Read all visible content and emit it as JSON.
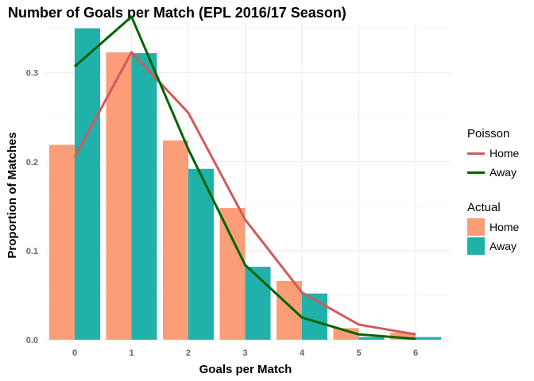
{
  "chart_data": {
    "type": "bar",
    "title": "Number of Goals per Match (EPL 2016/17 Season)",
    "xlabel": "Goals per Match",
    "ylabel": "Proportion of Matches",
    "categories": [
      "0",
      "1",
      "2",
      "3",
      "4",
      "5",
      "6"
    ],
    "ylim": [
      0,
      0.355
    ],
    "yticks": [
      0.0,
      0.1,
      0.2,
      0.3
    ],
    "ytick_labels": [
      "0.0",
      "0.1",
      "0.2",
      "0.3"
    ],
    "grid": true,
    "series": [
      {
        "name": "Home",
        "group": "Actual",
        "kind": "bar",
        "color": "#FC9D7A",
        "values": [
          0.219,
          0.323,
          0.224,
          0.148,
          0.066,
          0.013,
          0.008
        ]
      },
      {
        "name": "Away",
        "group": "Actual",
        "kind": "bar",
        "color": "#20B2AA",
        "values": [
          0.35,
          0.322,
          0.192,
          0.082,
          0.052,
          0.003,
          0.003
        ]
      },
      {
        "name": "Home",
        "group": "Poisson",
        "kind": "line",
        "color": "#CD5C5C",
        "values": [
          0.205,
          0.323,
          0.255,
          0.135,
          0.053,
          0.017,
          0.006
        ]
      },
      {
        "name": "Away",
        "group": "Poisson",
        "kind": "line",
        "color": "#006400",
        "values": [
          0.307,
          0.363,
          0.214,
          0.084,
          0.025,
          0.006,
          0.001
        ]
      }
    ],
    "legend": {
      "placement": "right",
      "groups": [
        {
          "title": "Poisson",
          "items": [
            {
              "label": "Home",
              "color": "#CD5C5C"
            },
            {
              "label": "Away",
              "color": "#006400"
            }
          ]
        },
        {
          "title": "Actual",
          "items": [
            {
              "label": "Home",
              "color": "#FC9D7A"
            },
            {
              "label": "Away",
              "color": "#20B2AA"
            }
          ]
        }
      ]
    }
  }
}
